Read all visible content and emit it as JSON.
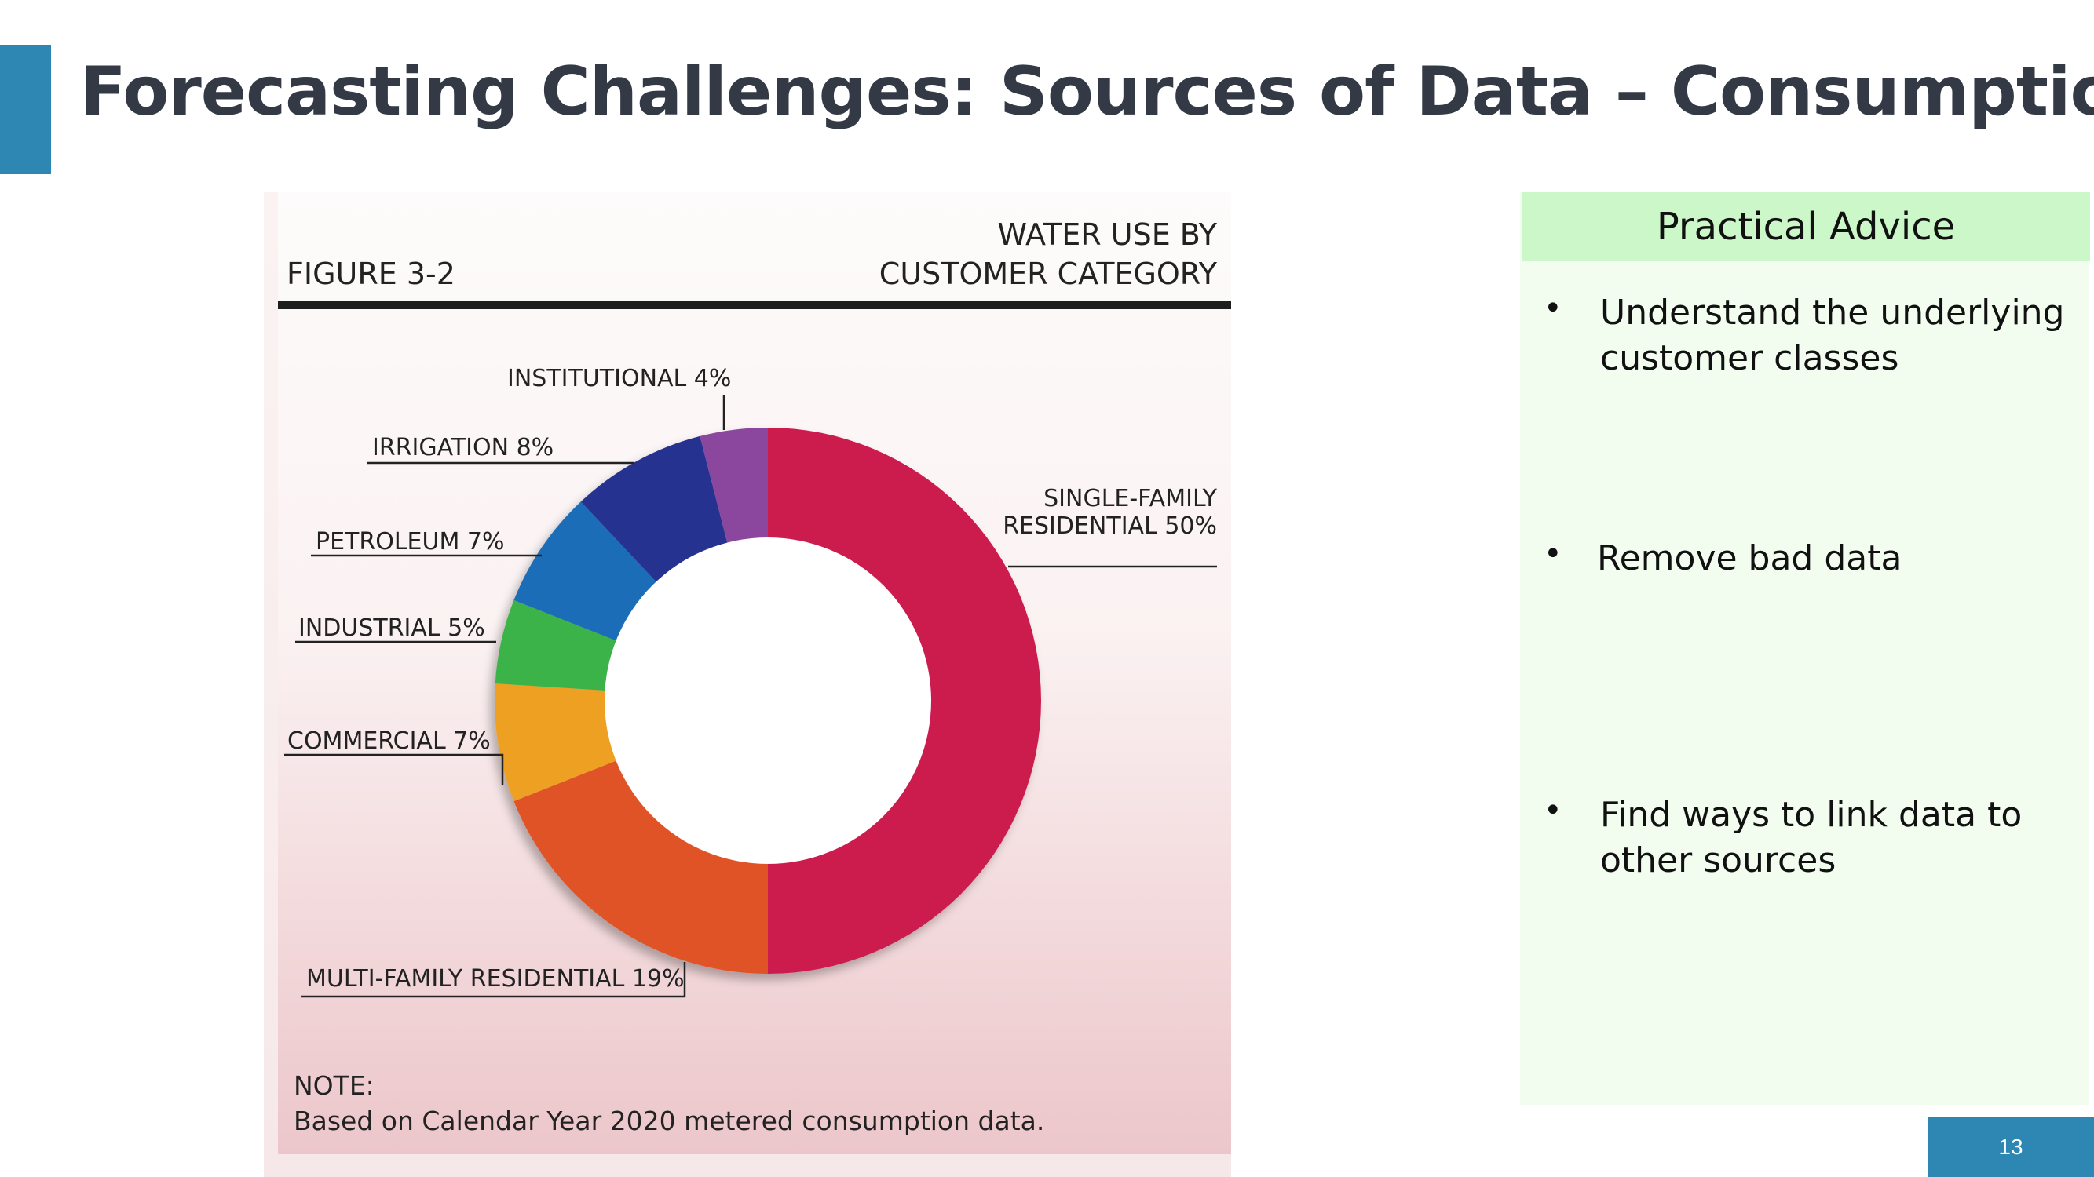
{
  "slide": {
    "title": "Forecasting Challenges: Sources of Data – Consumption",
    "page_number": "13",
    "accent_color": "#2e86b3"
  },
  "figure": {
    "label": "FIGURE 3-2",
    "title_line1": "WATER USE BY",
    "title_line2": "CUSTOMER CATEGORY",
    "note_label": "NOTE:",
    "note_text": "Based on Calendar Year 2020 metered consumption data."
  },
  "chart_data": {
    "type": "pie",
    "title": "WATER USE BY CUSTOMER CATEGORY",
    "donut": true,
    "slices": [
      {
        "label": "SINGLE-FAMILY RESIDENTIAL",
        "value": 50,
        "text_lines": [
          "SINGLE-FAMILY",
          "RESIDENTIAL 50%"
        ],
        "color": "#cc1f4e"
      },
      {
        "label": "MULTI-FAMILY RESIDENTIAL",
        "value": 19,
        "text_lines": [
          "MULTI-FAMILY RESIDENTIAL 19%"
        ],
        "color": "#e05325"
      },
      {
        "label": "COMMERCIAL",
        "value": 7,
        "text_lines": [
          "COMMERCIAL 7%"
        ],
        "color": "#eea024"
      },
      {
        "label": "INDUSTRIAL",
        "value": 5,
        "text_lines": [
          "INDUSTRIAL 5%"
        ],
        "color": "#3bb34a"
      },
      {
        "label": "PETROLEUM",
        "value": 7,
        "text_lines": [
          "PETROLEUM 7%"
        ],
        "color": "#1f6db8"
      },
      {
        "label": "IRRIGATION",
        "value": 8,
        "text_lines": [
          "IRRIGATION 8%"
        ],
        "color": "#27338f"
      },
      {
        "label": "INSTITUTIONAL",
        "value": 4,
        "text_lines": [
          "INSTITUTIONAL 4%"
        ],
        "color": "#8a479d"
      }
    ]
  },
  "advice": {
    "header": "Practical Advice",
    "items": [
      {
        "bullet": "•",
        "text": "Understand the underlying customer classes"
      },
      {
        "bullet": "•",
        "text": "Remove bad data"
      },
      {
        "bullet": "•",
        "text": "Find ways to link data to other sources"
      }
    ]
  }
}
